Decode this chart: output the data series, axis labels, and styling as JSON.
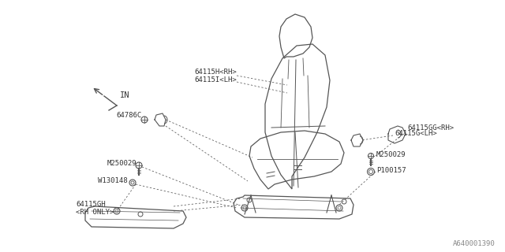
{
  "bg_color": "#ffffff",
  "line_color": "#555555",
  "text_color": "#333333",
  "fig_width": 6.4,
  "fig_height": 3.2,
  "dpi": 100,
  "footer_text": "A640001390",
  "labels": {
    "64115H_RH": "64115H<RH>",
    "64115I_LH": "64115I<LH>",
    "64786C": "64786C",
    "64115G_LH": "64115G<LH>",
    "64115GG_RH": "64115GG<RH>",
    "M250029_L": "M250029",
    "M250029_R": "M250029",
    "P100157": "P100157",
    "W130148": "W130148",
    "64115GH": "64115GH",
    "RH_ONLY": "<RH ONLY>",
    "IN": "IN"
  },
  "seat_back": {
    "x": [
      370,
      358,
      348,
      342,
      344,
      352,
      366,
      384,
      400,
      414,
      418,
      412,
      400,
      384,
      368,
      370
    ],
    "y": [
      238,
      218,
      195,
      168,
      138,
      108,
      82,
      65,
      62,
      72,
      98,
      130,
      162,
      192,
      218,
      238
    ]
  },
  "headrest": {
    "x": [
      364,
      360,
      356,
      358,
      365,
      376,
      388,
      396,
      398,
      394,
      388,
      378,
      368,
      364
    ],
    "y": [
      82,
      68,
      54,
      42,
      32,
      26,
      30,
      42,
      56,
      68,
      76,
      80,
      80,
      82
    ]
  },
  "seat_cushion": {
    "x": [
      340,
      332,
      326,
      320,
      322,
      332,
      354,
      380,
      406,
      424,
      430,
      426,
      416,
      396,
      370,
      348,
      340
    ],
    "y": [
      238,
      228,
      216,
      202,
      190,
      180,
      172,
      170,
      174,
      182,
      195,
      208,
      218,
      224,
      228,
      232,
      238
    ]
  },
  "seat_rail": {
    "x": [
      310,
      298,
      288,
      285,
      290,
      420,
      438,
      442,
      440,
      312,
      310
    ],
    "y": [
      248,
      246,
      250,
      258,
      268,
      272,
      266,
      256,
      248,
      244,
      248
    ]
  },
  "rail_lower": {
    "x": [
      288,
      285,
      290,
      420,
      438,
      442,
      440,
      290,
      288
    ],
    "y": [
      250,
      258,
      268,
      272,
      266,
      256,
      248,
      244,
      250
    ]
  }
}
